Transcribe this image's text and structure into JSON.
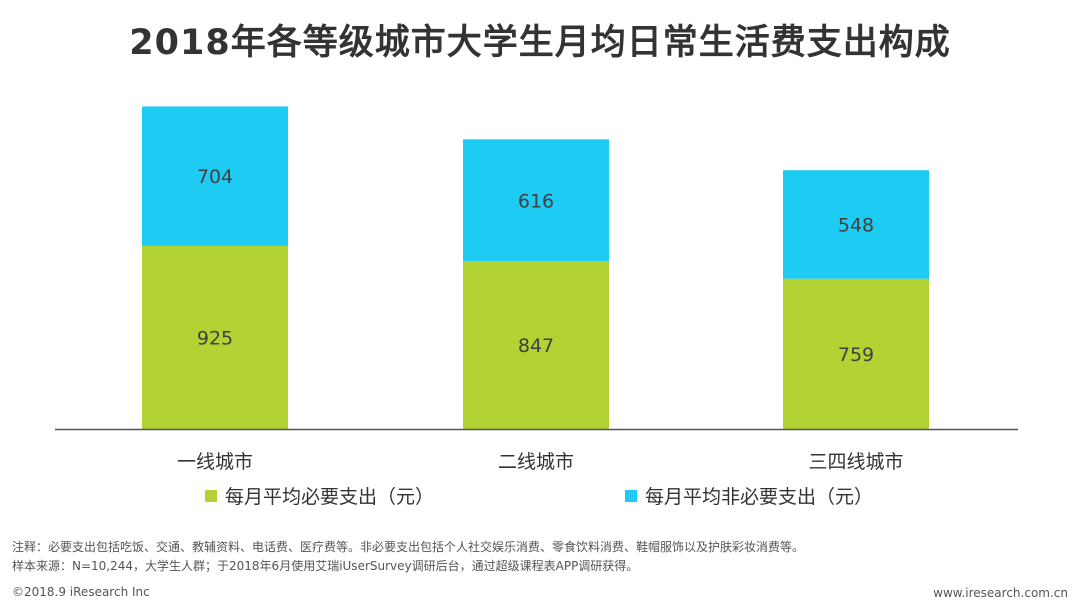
{
  "header": {
    "title": "2018年各等级城市大学生月均日常生活费支出构成"
  },
  "chart_data": {
    "type": "bar",
    "stacked": true,
    "title": "2018年各等级城市大学生月均日常生活费支出构成",
    "categories": [
      "一线城市",
      "二线城市",
      "三四线城市"
    ],
    "series": [
      {
        "name": "每月平均必要支出（元）",
        "values": [
          925,
          847,
          759
        ],
        "color": "#b3d334"
      },
      {
        "name": "每月平均非必要支出（元）",
        "values": [
          704,
          616,
          548
        ],
        "color": "#1ecbf2"
      }
    ],
    "legend_position": "bottom",
    "grid": false
  },
  "footer": {
    "note1": "注释：必要支出包括吃饭、交通、教辅资料、电话费、医疗费等。非必要支出包括个人社交娱乐消费、零食饮料消费、鞋帽服饰以及护肤彩妆消费等。",
    "note2": "样本来源：N=10,244，大学生人群；于2018年6月使用艾瑞iUserSurvey调研后台，通过超级课程表APP调研获得。",
    "copyright": "©2018.9 iResearch Inc",
    "website": "www.iresearch.com.cn"
  }
}
